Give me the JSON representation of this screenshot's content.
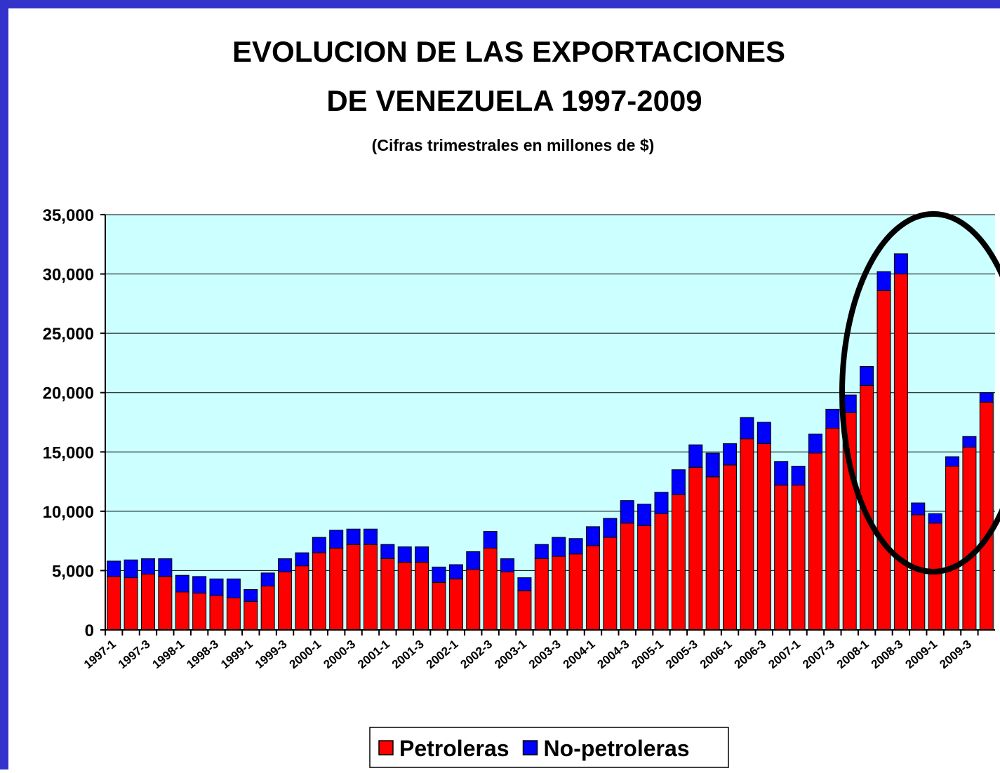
{
  "chart_data": {
    "type": "stacked_bar",
    "title": [
      "EVOLUCION DE LAS EXPORTACIONES",
      "DE VENEZUELA 1997-2009"
    ],
    "subtitle": "(Cifras trimestrales en millones de $)",
    "categories": [
      "1997-1",
      null,
      "1997-3",
      null,
      "1998-1",
      null,
      "1998-3",
      null,
      "1999-1",
      null,
      "1999-3",
      null,
      "2000-1",
      null,
      "2000-3",
      null,
      "2001-1",
      null,
      "2001-3",
      null,
      "2002-1",
      null,
      "2002-3",
      null,
      "2003-1",
      null,
      "2003-3",
      null,
      "2004-1",
      null,
      "2004-3",
      null,
      "2005-1",
      null,
      "2005-3",
      null,
      "2006-1",
      null,
      "2006-3",
      null,
      "2007-1",
      null,
      "2007-3",
      null,
      "2008-1",
      null,
      "2008-3",
      null,
      "2009-1",
      null,
      "2009-3",
      null
    ],
    "series": [
      {
        "name": "Petroleras",
        "color": "#ff0000",
        "values": [
          4500,
          4400,
          4700,
          4500,
          3200,
          3100,
          2900,
          2700,
          2400,
          3700,
          4900,
          5400,
          6500,
          6900,
          7200,
          7200,
          6000,
          5700,
          5700,
          4000,
          4300,
          5100,
          6900,
          4900,
          3300,
          6000,
          6200,
          6400,
          7100,
          7800,
          9000,
          8800,
          9800,
          11400,
          13700,
          12900,
          13900,
          16100,
          15700,
          12200,
          12200,
          14900,
          17000,
          18300,
          20600,
          28600,
          30000,
          9700,
          9000,
          13800,
          15400,
          19200
        ]
      },
      {
        "name": "No-petroleras",
        "color": "#0000ff",
        "values": [
          1300,
          1500,
          1300,
          1500,
          1400,
          1400,
          1400,
          1600,
          1000,
          1100,
          1100,
          1100,
          1300,
          1500,
          1300,
          1300,
          1200,
          1300,
          1300,
          1300,
          1200,
          1500,
          1400,
          1100,
          1100,
          1200,
          1600,
          1300,
          1600,
          1600,
          1900,
          1800,
          1800,
          2100,
          1900,
          2000,
          1800,
          1800,
          1800,
          2000,
          1600,
          1600,
          1600,
          1500,
          1600,
          1600,
          1700,
          1000,
          800,
          800,
          900,
          800
        ]
      }
    ],
    "ylim": [
      0,
      35000
    ],
    "yticks": [
      0,
      {
        "value": 5000,
        "label": "5,000"
      },
      {
        "value": 10000,
        "label": "10,000"
      },
      {
        "value": 15000,
        "label": "15,000"
      },
      {
        "value": 20000,
        "label": "20,000"
      },
      {
        "value": 25000,
        "label": "25,000"
      },
      {
        "value": 30000,
        "label": "30,000"
      },
      {
        "value": 35000,
        "label": "35,000"
      }
    ],
    "grid": true
  }
}
